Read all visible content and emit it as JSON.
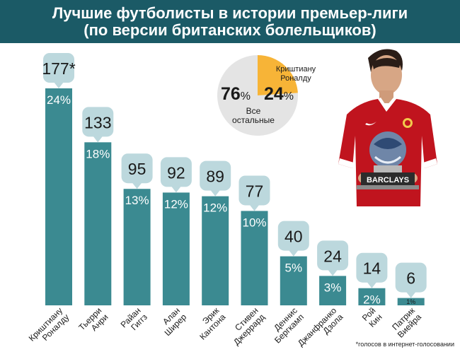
{
  "header": {
    "title_line1": "Лучшие футболисты в истории премьер-лиги",
    "title_line2": "(по версии британских болельщиков)"
  },
  "chart_data": {
    "type": "bar",
    "categories": [
      [
        "Криштиану",
        "Роналду"
      ],
      [
        "Тьерри",
        "Анри"
      ],
      [
        "Райан",
        "Гиггз"
      ],
      [
        "Алан",
        "Ширер"
      ],
      [
        "Эрик",
        "Кантона"
      ],
      [
        "Стивен",
        "Джеррард"
      ],
      [
        "Деннис",
        "Бергкамп"
      ],
      [
        "Джанфранко",
        "Дзола"
      ],
      [
        "Рой",
        "Кин"
      ],
      [
        "Патрик",
        "Виейра"
      ]
    ],
    "values": [
      177,
      133,
      95,
      92,
      89,
      77,
      40,
      24,
      14,
      6
    ],
    "value_labels": [
      "177*",
      "133",
      "95",
      "92",
      "89",
      "77",
      "40",
      "24",
      "14",
      "6"
    ],
    "percent_labels": [
      "24%",
      "18%",
      "13%",
      "12%",
      "12%",
      "10%",
      "5%",
      "3%",
      "2%",
      "1%"
    ],
    "ylim": [
      0,
      177
    ],
    "pie": {
      "slices": [
        {
          "value": 76,
          "percent_label": "76",
          "label": [
            "Все",
            "остальные"
          ]
        },
        {
          "value": 24,
          "percent_label": "24",
          "label": [
            "Криштиану",
            "Роналду"
          ]
        }
      ],
      "percent_sign": "%"
    },
    "footnote": "*голосов в интернет-голосовании"
  },
  "photo": {
    "badge_text": "BARCLAYS"
  },
  "colors": {
    "header_bg": "#1b5a66",
    "bar": "#3b8a91",
    "bubble": "#bcd8dd",
    "pie_others": "#e4e4e4",
    "pie_ronaldo": "#f7b437",
    "shirt": "#c0141e"
  }
}
